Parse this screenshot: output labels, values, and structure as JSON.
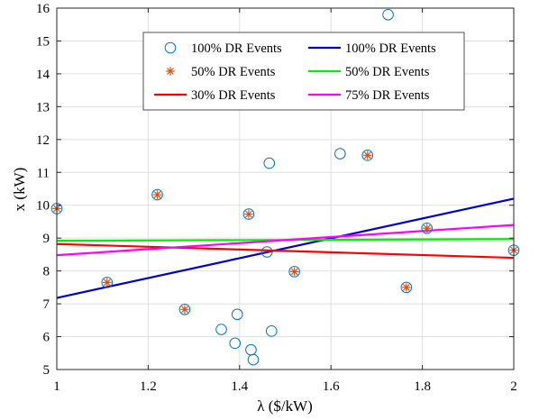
{
  "chart_data": {
    "type": "scatter",
    "title": "",
    "xlabel": "λ ($/kW)",
    "ylabel": "x (kW)",
    "xlim": [
      1,
      2
    ],
    "ylim": [
      5,
      16
    ],
    "xticks": [
      {
        "value": 1,
        "label": "1"
      },
      {
        "value": 1.2,
        "label": "1.2"
      },
      {
        "value": 1.4,
        "label": "1.4"
      },
      {
        "value": 1.6,
        "label": "1.6"
      },
      {
        "value": 1.8,
        "label": "1.8"
      },
      {
        "value": 2,
        "label": "2"
      }
    ],
    "yticks": [
      {
        "value": 5,
        "label": "5"
      },
      {
        "value": 6,
        "label": "6"
      },
      {
        "value": 7,
        "label": "7"
      },
      {
        "value": 8,
        "label": "8"
      },
      {
        "value": 9,
        "label": "9"
      },
      {
        "value": 10,
        "label": "10"
      },
      {
        "value": 11,
        "label": "11"
      },
      {
        "value": 12,
        "label": "12"
      },
      {
        "value": 13,
        "label": "13"
      },
      {
        "value": 14,
        "label": "14"
      },
      {
        "value": 15,
        "label": "15"
      },
      {
        "value": 16,
        "label": "16"
      }
    ],
    "grid": true,
    "legend_position": "top",
    "series": [
      {
        "name": "100% DR Events",
        "kind": "scatter",
        "marker": "circle",
        "color": "#0072BD",
        "points": [
          {
            "x": 1.0,
            "y": 9.9
          },
          {
            "x": 1.11,
            "y": 7.65
          },
          {
            "x": 1.22,
            "y": 10.32
          },
          {
            "x": 1.28,
            "y": 6.83
          },
          {
            "x": 1.36,
            "y": 6.22
          },
          {
            "x": 1.39,
            "y": 5.8
          },
          {
            "x": 1.395,
            "y": 6.68
          },
          {
            "x": 1.42,
            "y": 9.73
          },
          {
            "x": 1.425,
            "y": 5.6
          },
          {
            "x": 1.43,
            "y": 5.3
          },
          {
            "x": 1.46,
            "y": 8.58
          },
          {
            "x": 1.465,
            "y": 11.28
          },
          {
            "x": 1.47,
            "y": 6.17
          },
          {
            "x": 1.52,
            "y": 7.98
          },
          {
            "x": 1.62,
            "y": 11.57
          },
          {
            "x": 1.68,
            "y": 11.52
          },
          {
            "x": 1.725,
            "y": 15.8
          },
          {
            "x": 1.765,
            "y": 7.5
          },
          {
            "x": 1.81,
            "y": 9.3
          },
          {
            "x": 2.0,
            "y": 8.63
          }
        ]
      },
      {
        "name": "50% DR Events",
        "kind": "scatter",
        "marker": "asterisk",
        "color": "#D95319",
        "points": [
          {
            "x": 1.0,
            "y": 9.9
          },
          {
            "x": 1.11,
            "y": 7.65
          },
          {
            "x": 1.22,
            "y": 10.32
          },
          {
            "x": 1.28,
            "y": 6.83
          },
          {
            "x": 1.42,
            "y": 9.73
          },
          {
            "x": 1.52,
            "y": 7.98
          },
          {
            "x": 1.68,
            "y": 11.52
          },
          {
            "x": 1.765,
            "y": 7.5
          },
          {
            "x": 1.81,
            "y": 9.3
          },
          {
            "x": 2.0,
            "y": 8.63
          }
        ]
      },
      {
        "name": "100% DR Events",
        "kind": "line",
        "color": "#0000CC",
        "points": [
          {
            "x": 1.0,
            "y": 7.18
          },
          {
            "x": 2.0,
            "y": 10.2
          }
        ]
      },
      {
        "name": "50% DR Events",
        "kind": "line",
        "color": "#00EE00",
        "points": [
          {
            "x": 1.0,
            "y": 8.92
          },
          {
            "x": 2.0,
            "y": 8.97
          }
        ]
      },
      {
        "name": "30% DR Events",
        "kind": "line",
        "color": "#FF0000",
        "points": [
          {
            "x": 1.0,
            "y": 8.82
          },
          {
            "x": 2.0,
            "y": 8.4
          }
        ]
      },
      {
        "name": "75% DR Events",
        "kind": "line",
        "color": "#FF00FF",
        "points": [
          {
            "x": 1.0,
            "y": 8.48
          },
          {
            "x": 2.0,
            "y": 9.4
          }
        ]
      }
    ],
    "legend": [
      {
        "label": "100% DR Events",
        "symbol": "circle",
        "color": "#0072BD"
      },
      {
        "label": "100% DR Events",
        "symbol": "line",
        "color": "#0000CC"
      },
      {
        "label": "50% DR Events",
        "symbol": "asterisk",
        "color": "#D95319"
      },
      {
        "label": "50% DR Events",
        "symbol": "line",
        "color": "#00EE00"
      },
      {
        "label": "30% DR Events",
        "symbol": "line",
        "color": "#FF0000"
      },
      {
        "label": "75% DR Events",
        "symbol": "line",
        "color": "#FF00FF"
      }
    ]
  }
}
